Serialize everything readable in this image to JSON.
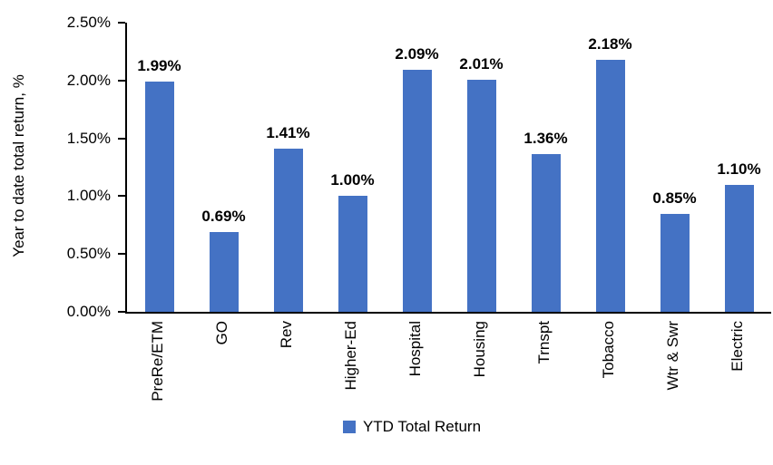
{
  "chart_data": {
    "type": "bar",
    "categories": [
      "PreRe/ETM",
      "GO",
      "Rev",
      "Higher-Ed",
      "Hospital",
      "Housing",
      "Trnspt",
      "Tobacco",
      "Wtr & Swr",
      "Electric"
    ],
    "values": [
      1.99,
      0.69,
      1.41,
      1.0,
      2.09,
      2.01,
      1.36,
      2.18,
      0.85,
      1.1
    ],
    "value_labels": [
      "1.99%",
      "0.69%",
      "1.41%",
      "1.00%",
      "2.09%",
      "2.01%",
      "1.36%",
      "2.18%",
      "0.85%",
      "1.10%"
    ],
    "title": "",
    "xlabel": "",
    "ylabel": "Year to date total return, %",
    "ylim": [
      0,
      2.5
    ],
    "ytick_values": [
      0,
      0.5,
      1.0,
      1.5,
      2.0,
      2.5
    ],
    "ytick_labels": [
      "0.00%",
      "0.50%",
      "1.00%",
      "1.50%",
      "2.00%",
      "2.50%"
    ],
    "legend": [
      "YTD Total Return"
    ],
    "legend_position": "bottom",
    "bar_color": "#4472C4",
    "axis_color": "#000000",
    "grid": false
  }
}
